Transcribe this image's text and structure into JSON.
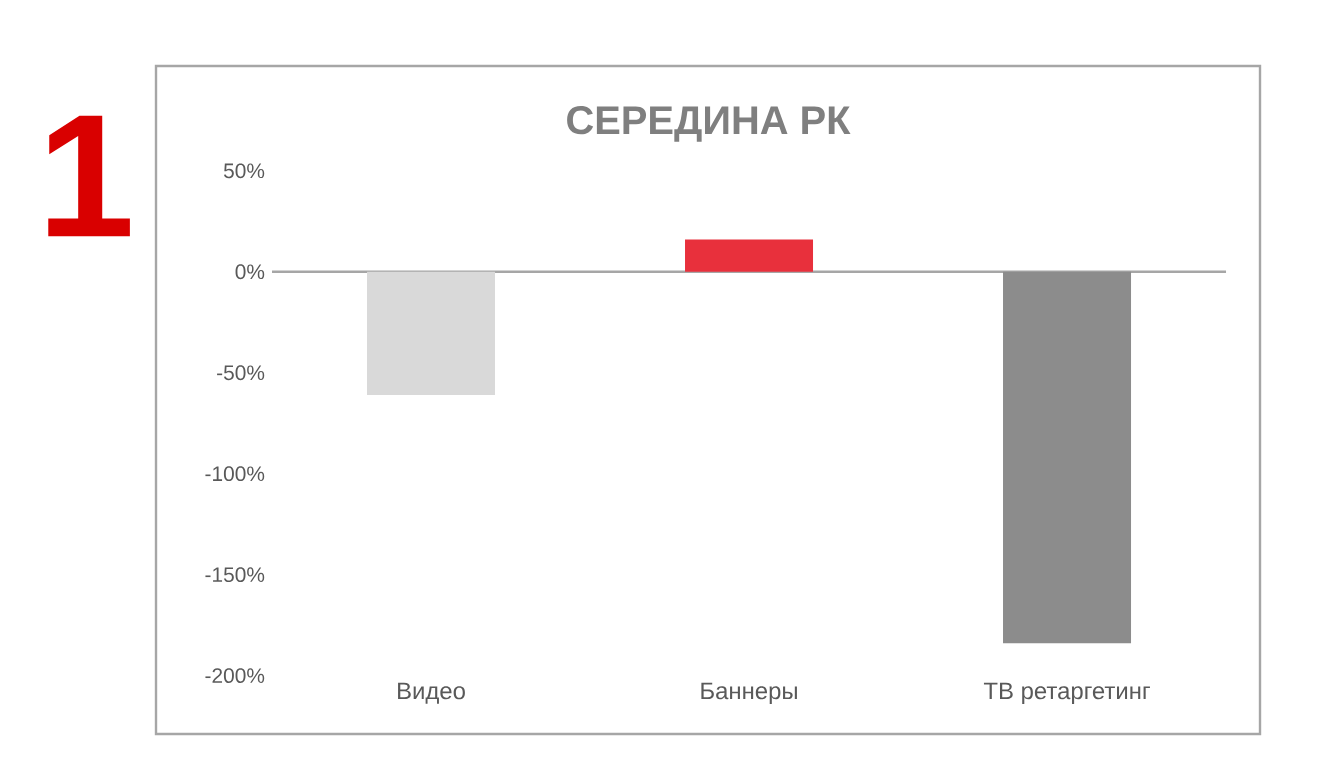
{
  "chart_data": {
    "type": "bar",
    "title": "СЕРЕДИНА РК",
    "annotations": [
      "1"
    ],
    "categories": [
      "Видео",
      "Баннеры",
      "ТВ ретаргетинг"
    ],
    "values": [
      -61,
      16,
      -184
    ],
    "colors": [
      "#d9d9d9",
      "#e8303c",
      "#8c8c8c"
    ],
    "ylim": [
      -200,
      50
    ],
    "yticks": [
      {
        "value": 50,
        "label": "50%"
      },
      {
        "value": 0,
        "label": "0%"
      },
      {
        "value": -50,
        "label": "-50%"
      },
      {
        "value": -100,
        "label": "-100%"
      },
      {
        "value": -150,
        "label": "-150%"
      },
      {
        "value": -200,
        "label": "-200%"
      }
    ],
    "data_labels": false
  }
}
